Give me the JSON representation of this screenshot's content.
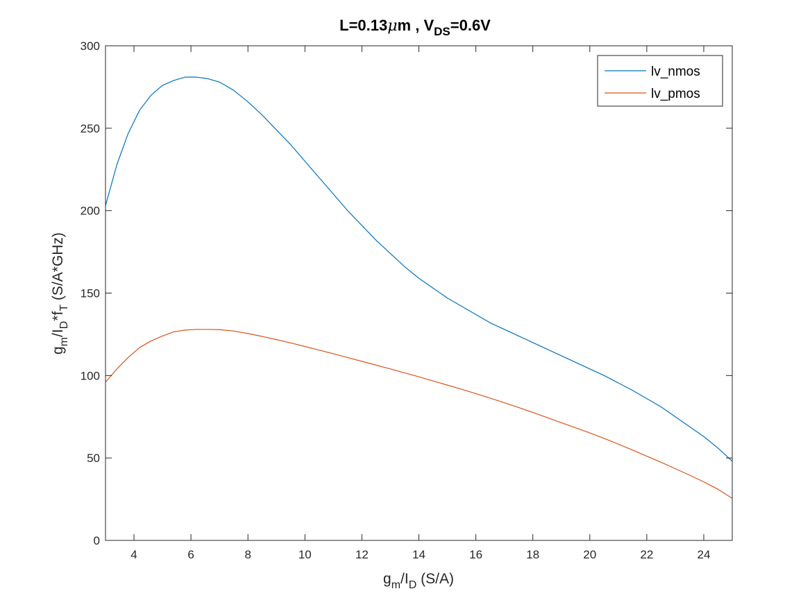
{
  "chart_data": {
    "type": "line",
    "title": {
      "main": "L=0.13",
      "mu": "μ",
      "unit": "m , V",
      "sub": "DS",
      "tail": "=0.6V"
    },
    "xlabel": {
      "g": "g",
      "g_sub": "m",
      "slash_i": "/I",
      "i_sub": "D",
      "rest": " (S/A)"
    },
    "ylabel": {
      "g": "g",
      "g_sub": "m",
      "slash_i": "/I",
      "i_sub": "D",
      "f": "*f",
      "f_sub": "T",
      "rest": " (S/A*GHz)"
    },
    "xlim": [
      3,
      25
    ],
    "ylim": [
      0,
      300
    ],
    "xticks": [
      4,
      6,
      8,
      10,
      12,
      14,
      16,
      18,
      20,
      22,
      24
    ],
    "yticks": [
      0,
      50,
      100,
      150,
      200,
      250,
      300
    ],
    "xtick_labels": [
      "4",
      "6",
      "8",
      "10",
      "12",
      "14",
      "16",
      "18",
      "20",
      "22",
      "24"
    ],
    "ytick_labels": [
      "0",
      "50",
      "100",
      "150",
      "200",
      "250",
      "300"
    ],
    "grid": false,
    "legend_position": "top-right",
    "series": [
      {
        "name": "lv_nmos",
        "color": "#0072bd",
        "x": [
          3.0,
          3.4,
          3.8,
          4.2,
          4.6,
          5.0,
          5.4,
          5.8,
          6.2,
          6.6,
          7.0,
          7.5,
          8.0,
          8.5,
          9.0,
          9.5,
          10.0,
          10.5,
          11.0,
          11.5,
          12.0,
          12.5,
          13.0,
          13.5,
          14.0,
          14.5,
          15.0,
          15.5,
          16.0,
          16.5,
          17.0,
          17.5,
          18.0,
          18.5,
          19.0,
          19.5,
          20.0,
          20.5,
          21.0,
          21.5,
          22.0,
          22.5,
          23.0,
          23.5,
          24.0,
          24.5,
          25.0
        ],
        "y": [
          203,
          228,
          247,
          261,
          270,
          276,
          279,
          281,
          281,
          280,
          278,
          273,
          266,
          258,
          249,
          240,
          230,
          220,
          210,
          200,
          191,
          182,
          174,
          166,
          159,
          153,
          147,
          142,
          137,
          132,
          128,
          124,
          120,
          116,
          112,
          108,
          104,
          100,
          95.5,
          91,
          86,
          81,
          75,
          69,
          63,
          56,
          48
        ]
      },
      {
        "name": "lv_pmos",
        "color": "#d95319",
        "x": [
          3.0,
          3.4,
          3.8,
          4.2,
          4.6,
          5.0,
          5.4,
          5.8,
          6.2,
          6.6,
          7.0,
          7.5,
          8.0,
          8.5,
          9.0,
          9.5,
          10.0,
          10.5,
          11.0,
          11.5,
          12.0,
          12.5,
          13.0,
          13.5,
          14.0,
          14.5,
          15.0,
          15.5,
          16.0,
          16.5,
          17.0,
          17.5,
          18.0,
          18.5,
          19.0,
          19.5,
          20.0,
          20.5,
          21.0,
          21.5,
          22.0,
          22.5,
          23.0,
          23.5,
          24.0,
          24.5,
          25.0
        ],
        "y": [
          96,
          104,
          111,
          117,
          121,
          124,
          126.5,
          127.6,
          128,
          128,
          127.8,
          127,
          125.5,
          123.7,
          121.8,
          119.8,
          117.6,
          115.4,
          113.2,
          110.9,
          108.6,
          106.3,
          104,
          101.6,
          99.2,
          96.7,
          94.2,
          91.7,
          89,
          86.3,
          83.5,
          80.6,
          77.6,
          74.5,
          71.4,
          68.3,
          65.2,
          61.9,
          58.4,
          54.8,
          51.1,
          47.4,
          43.5,
          39.6,
          35.5,
          31,
          25.5
        ]
      }
    ]
  }
}
